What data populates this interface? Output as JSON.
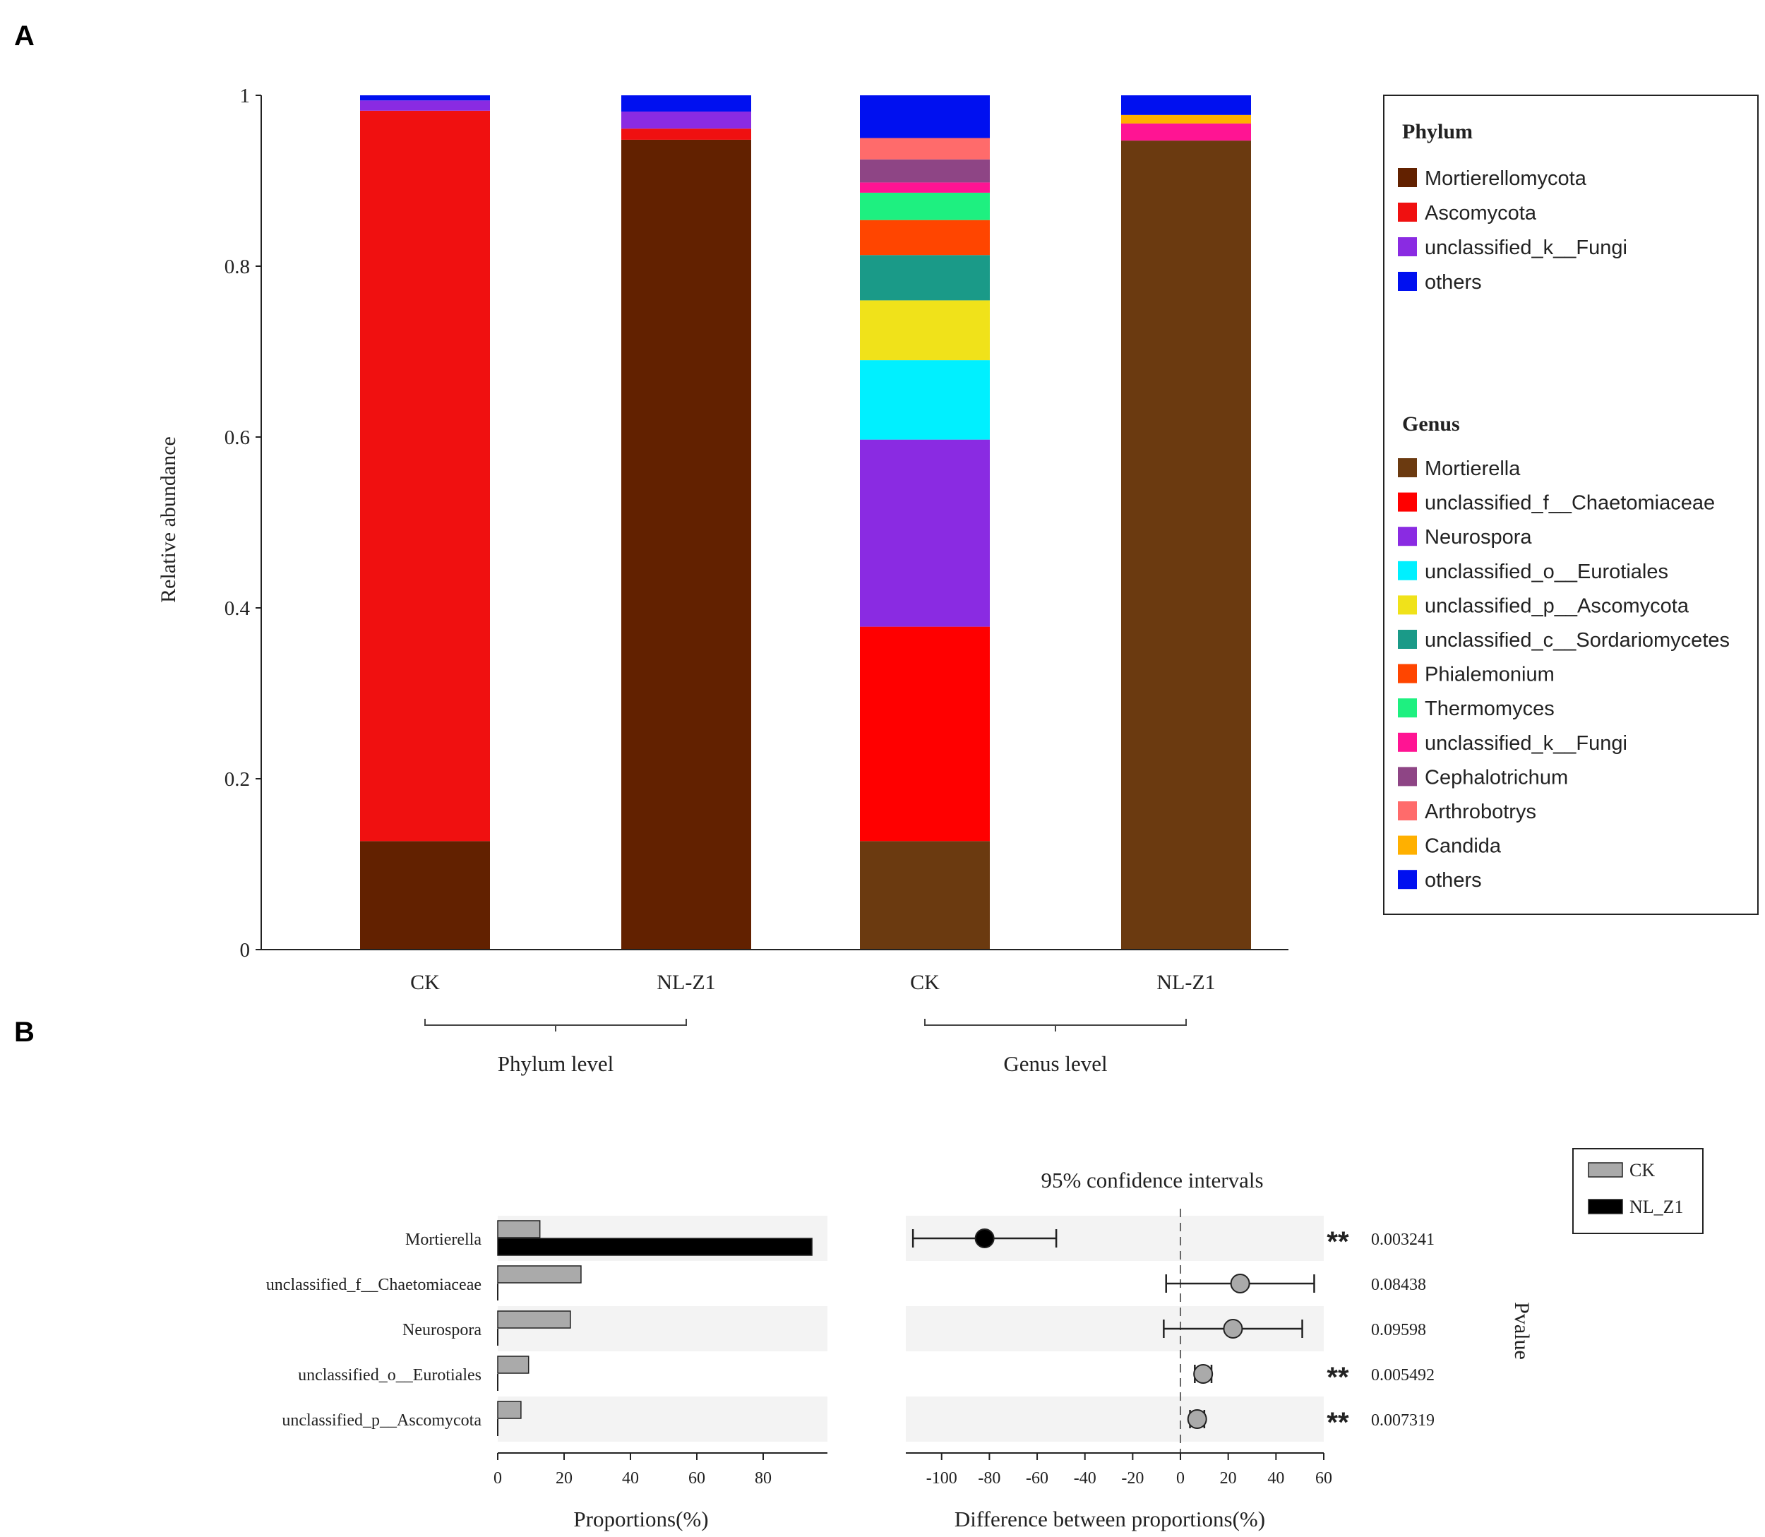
{
  "panel_a": {
    "label": "A",
    "chart_data": {
      "type": "bar",
      "stacked": true,
      "ylabel": "Relative abundance",
      "ylim": [
        0,
        1
      ],
      "yticks": [
        0,
        0.2,
        0.4,
        0.6,
        0.8,
        1
      ],
      "ytick_labels": [
        "0",
        "0.2",
        "0.4",
        "0.6",
        "0.8",
        "1"
      ],
      "categories": [
        "CK",
        "NL-Z1",
        "CK",
        "NL-Z1"
      ],
      "groups": [
        {
          "label": "Phylum level",
          "categories": [
            "CK",
            "NL-Z1"
          ]
        },
        {
          "label": "Genus level",
          "categories": [
            "CK",
            "NL-Z1"
          ]
        }
      ],
      "bars": [
        {
          "category": "CK",
          "level": "Phylum",
          "segments": [
            {
              "name": "Mortierellomycota",
              "value": 0.127,
              "color": "#622100"
            },
            {
              "name": "Ascomycota",
              "value": 0.855,
              "color": "#F01010"
            },
            {
              "name": "unclassified_k__Fungi",
              "value": 0.012,
              "color": "#8A2BE2"
            },
            {
              "name": "others",
              "value": 0.006,
              "color": "#0010F0"
            }
          ]
        },
        {
          "category": "NL-Z1",
          "level": "Phylum",
          "segments": [
            {
              "name": "Mortierellomycota",
              "value": 0.948,
              "color": "#622100"
            },
            {
              "name": "Ascomycota",
              "value": 0.013,
              "color": "#F01010"
            },
            {
              "name": "unclassified_k__Fungi",
              "value": 0.02,
              "color": "#8A2BE2"
            },
            {
              "name": "others",
              "value": 0.019,
              "color": "#0010F0"
            }
          ]
        },
        {
          "category": "CK",
          "level": "Genus",
          "segments": [
            {
              "name": "Mortierella",
              "value": 0.127,
              "color": "#6B3A10"
            },
            {
              "name": "unclassified_f__Chaetomiaceae",
              "value": 0.251,
              "color": "#FF0000"
            },
            {
              "name": "Neurospora",
              "value": 0.219,
              "color": "#8A2BE2"
            },
            {
              "name": "unclassified_o__Eurotiales",
              "value": 0.093,
              "color": "#00F0FF"
            },
            {
              "name": "unclassified_p__Ascomycota",
              "value": 0.07,
              "color": "#F0E21A"
            },
            {
              "name": "unclassified_c__Sordariomycetes",
              "value": 0.053,
              "color": "#1A9A88"
            },
            {
              "name": "Phialemonium",
              "value": 0.041,
              "color": "#FF4500"
            },
            {
              "name": "Thermomyces",
              "value": 0.032,
              "color": "#1EF080"
            },
            {
              "name": "unclassified_k__Fungi",
              "value": 0.012,
              "color": "#FF1493"
            },
            {
              "name": "Cephalotrichum",
              "value": 0.027,
              "color": "#8E4585"
            },
            {
              "name": "Arthrobotrys",
              "value": 0.025,
              "color": "#FF6B6B"
            },
            {
              "name": "Candida",
              "value": 0.0,
              "color": "#FFB000"
            },
            {
              "name": "others",
              "value": 0.05,
              "color": "#0010F0"
            }
          ]
        },
        {
          "category": "NL-Z1",
          "level": "Genus",
          "segments": [
            {
              "name": "Mortierella",
              "value": 0.947,
              "color": "#6B3A10"
            },
            {
              "name": "unclassified_k__Fungi",
              "value": 0.02,
              "color": "#FF1493"
            },
            {
              "name": "Candida",
              "value": 0.01,
              "color": "#FFB000"
            },
            {
              "name": "others",
              "value": 0.023,
              "color": "#0010F0"
            }
          ]
        }
      ]
    },
    "legend": {
      "phylum_title": "Phylum",
      "phylum": [
        {
          "name": "Mortierellomycota",
          "color": "#622100"
        },
        {
          "name": "Ascomycota",
          "color": "#F01010"
        },
        {
          "name": "unclassified_k__Fungi",
          "color": "#8A2BE2"
        },
        {
          "name": "others",
          "color": "#0010F0"
        }
      ],
      "genus_title": "Genus",
      "genus": [
        {
          "name": "Mortierella",
          "color": "#6B3A10"
        },
        {
          "name": "unclassified_f__Chaetomiaceae",
          "color": "#FF0000"
        },
        {
          "name": "Neurospora",
          "color": "#8A2BE2"
        },
        {
          "name": "unclassified_o__Eurotiales",
          "color": "#00F0FF"
        },
        {
          "name": "unclassified_p__Ascomycota",
          "color": "#F0E21A"
        },
        {
          "name": "unclassified_c__Sordariomycetes",
          "color": "#1A9A88"
        },
        {
          "name": "Phialemonium",
          "color": "#FF4500"
        },
        {
          "name": "Thermomyces",
          "color": "#1EF080"
        },
        {
          "name": "unclassified_k__Fungi",
          "color": "#FF1493"
        },
        {
          "name": "Cephalotrichum",
          "color": "#8E4585"
        },
        {
          "name": "Arthrobotrys",
          "color": "#FF6B6B"
        },
        {
          "name": "Candida",
          "color": "#FFB000"
        },
        {
          "name": "others",
          "color": "#0010F0"
        }
      ]
    }
  },
  "panel_b": {
    "label": "B",
    "chart_data": {
      "type": "bar",
      "title": "95% confidence intervals",
      "taxa": [
        "Mortierella",
        "unclassified_f__Chaetomiaceae",
        "Neurospora",
        "unclassified_o__Eurotiales",
        "unclassified_p__Ascomycota"
      ],
      "proportions": {
        "xlabel": "Proportions(%)",
        "xlim": [
          0,
          100
        ],
        "xticks": [
          0,
          20,
          40,
          60,
          80
        ],
        "series": [
          {
            "name": "CK",
            "color": "#AAAAAA",
            "values": [
              12.7,
              25.1,
              21.9,
              9.3,
              7.0
            ]
          },
          {
            "name": "NL_Z1",
            "color": "#000000",
            "values": [
              94.7,
              0.0,
              0.0,
              0.0,
              0.0
            ]
          }
        ]
      },
      "difference": {
        "xlabel": "Difference between proportions(%)",
        "xlim": [
          -115,
          60
        ],
        "xticks": [
          -100,
          -80,
          -60,
          -40,
          -20,
          0,
          20,
          40,
          60
        ],
        "estimates": [
          -82,
          25,
          22,
          9.5,
          7
        ],
        "ci_low": [
          -112,
          -6,
          -7,
          6,
          4
        ],
        "ci_high": [
          -52,
          56,
          51,
          13,
          10
        ],
        "point_colors": [
          "#000000",
          "#AAAAAA",
          "#AAAAAA",
          "#AAAAAA",
          "#AAAAAA"
        ]
      },
      "pvalues": [
        "0.003241",
        "0.08438",
        "0.09598",
        "0.005492",
        "0.007319"
      ],
      "significance": [
        "**",
        "",
        "",
        "**",
        "**"
      ],
      "pvalue_label": "Pvalue",
      "legend": [
        {
          "name": "CK",
          "color": "#AAAAAA"
        },
        {
          "name": "NL_Z1",
          "color": "#000000"
        }
      ]
    }
  }
}
